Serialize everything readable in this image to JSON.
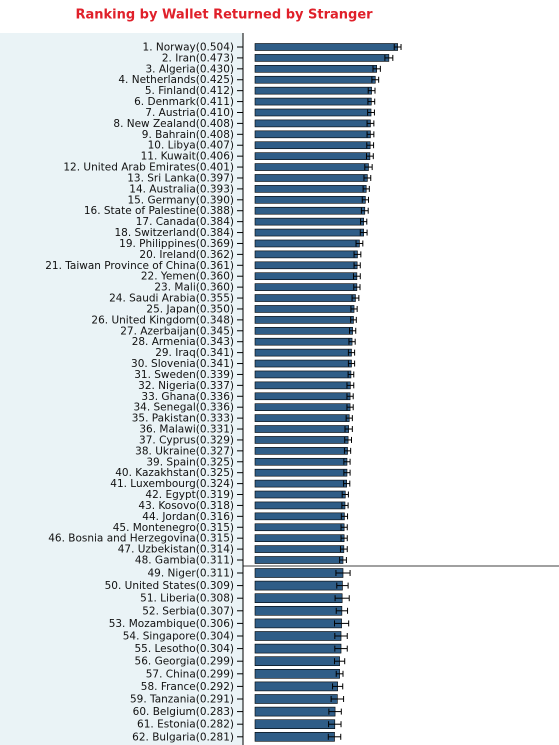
{
  "chart_data": {
    "type": "hbar",
    "title": "Ranking by Wallet Returned by Stranger",
    "categories": [
      "1. Norway(0.504)",
      "2. Iran(0.473)",
      "3. Algeria(0.430)",
      "4. Netherlands(0.425)",
      "5. Finland(0.412)",
      "6. Denmark(0.411)",
      "7. Austria(0.410)",
      "8. New Zealand(0.408)",
      "9. Bahrain(0.408)",
      "10. Libya(0.407)",
      "11. Kuwait(0.406)",
      "12. United Arab Emirates(0.401)",
      "13. Sri Lanka(0.397)",
      "14. Australia(0.393)",
      "15. Germany(0.390)",
      "16. State of Palestine(0.388)",
      "17. Canada(0.384)",
      "18. Switzerland(0.384)",
      "19. Philippines(0.369)",
      "20. Ireland(0.362)",
      "21. Taiwan Province of China(0.361)",
      "22. Yemen(0.360)",
      "23. Mali(0.360)",
      "24. Saudi Arabia(0.355)",
      "25. Japan(0.350)",
      "26. United Kingdom(0.348)",
      "27. Azerbaijan(0.345)",
      "28. Armenia(0.343)",
      "29. Iraq(0.341)",
      "30. Slovenia(0.341)",
      "31. Sweden(0.339)",
      "32. Nigeria(0.337)",
      "33. Ghana(0.336)",
      "34. Senegal(0.336)",
      "35. Pakistan(0.333)",
      "36. Malawi(0.331)",
      "37. Cyprus(0.329)",
      "38. Ukraine(0.327)",
      "39. Spain(0.325)",
      "40. Kazakhstan(0.325)",
      "41. Luxembourg(0.324)",
      "42. Egypt(0.319)",
      "43. Kosovo(0.318)",
      "44. Jordan(0.316)",
      "45. Montenegro(0.315)",
      "46. Bosnia and Herzegovina(0.315)",
      "47. Uzbekistan(0.314)",
      "48. Gambia(0.311)",
      "49. Niger(0.311)",
      "50. United States(0.309)",
      "51. Liberia(0.308)",
      "52. Serbia(0.307)",
      "53. Mozambique(0.306)",
      "54. Singapore(0.304)",
      "55. Lesotho(0.304)",
      "56. Georgia(0.299)",
      "57. China(0.299)",
      "58. France(0.292)",
      "59. Tanzania(0.291)",
      "60. Belgium(0.283)",
      "61. Estonia(0.282)",
      "62. Bulgaria(0.281)"
    ],
    "values": [
      0.504,
      0.473,
      0.43,
      0.425,
      0.412,
      0.411,
      0.41,
      0.408,
      0.408,
      0.407,
      0.406,
      0.401,
      0.397,
      0.393,
      0.39,
      0.388,
      0.384,
      0.384,
      0.369,
      0.362,
      0.361,
      0.36,
      0.36,
      0.355,
      0.35,
      0.348,
      0.345,
      0.343,
      0.341,
      0.341,
      0.339,
      0.337,
      0.336,
      0.336,
      0.333,
      0.331,
      0.329,
      0.327,
      0.325,
      0.325,
      0.324,
      0.319,
      0.318,
      0.316,
      0.315,
      0.315,
      0.314,
      0.311,
      0.311,
      0.309,
      0.308,
      0.307,
      0.306,
      0.304,
      0.304,
      0.299,
      0.299,
      0.292,
      0.291,
      0.283,
      0.282,
      0.281
    ],
    "errors": [
      0.012,
      0.014,
      0.013,
      0.012,
      0.012,
      0.012,
      0.012,
      0.012,
      0.012,
      0.012,
      0.012,
      0.013,
      0.012,
      0.011,
      0.011,
      0.012,
      0.011,
      0.012,
      0.012,
      0.012,
      0.011,
      0.012,
      0.011,
      0.012,
      0.011,
      0.01,
      0.011,
      0.011,
      0.011,
      0.011,
      0.01,
      0.012,
      0.011,
      0.011,
      0.011,
      0.013,
      0.012,
      0.011,
      0.011,
      0.011,
      0.011,
      0.011,
      0.011,
      0.011,
      0.011,
      0.011,
      0.012,
      0.012,
      0.025,
      0.02,
      0.025,
      0.02,
      0.025,
      0.022,
      0.022,
      0.018,
      0.012,
      0.018,
      0.022,
      0.022,
      0.022,
      0.022
    ],
    "color": "#2f5d87",
    "xlim": [
      0,
      1
    ]
  }
}
